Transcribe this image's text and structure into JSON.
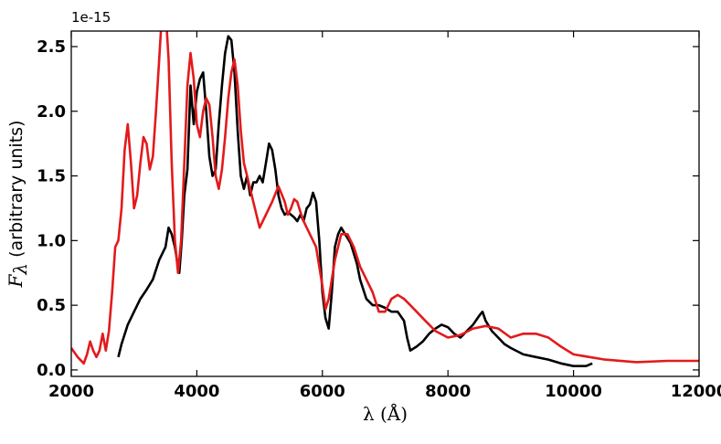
{
  "chart_data": {
    "type": "line",
    "title": "",
    "xlabel": "λ (Å)",
    "ylabel_symbol": "F",
    "ylabel_subscript": "λ",
    "ylabel_text": "(arbitrary units)",
    "y_offset_label": "1e-15",
    "xlim": [
      2000,
      12000
    ],
    "ylim": [
      -0.05,
      2.62
    ],
    "x_ticks": [
      2000,
      4000,
      6000,
      8000,
      10000,
      12000
    ],
    "x_tick_labels": [
      "2000",
      "4000",
      "6000",
      "8000",
      "10000",
      "12000"
    ],
    "y_ticks": [
      0.0,
      0.5,
      1.0,
      1.5,
      2.0,
      2.5
    ],
    "y_tick_labels": [
      "0.0",
      "0.5",
      "1.0",
      "1.5",
      "2.0",
      "2.5"
    ],
    "grid": false,
    "series": [
      {
        "color": "#000000",
        "x": [
          2750,
          2800,
          2900,
          3000,
          3100,
          3200,
          3300,
          3400,
          3500,
          3550,
          3600,
          3650,
          3700,
          3720,
          3760,
          3800,
          3850,
          3900,
          3950,
          4000,
          4050,
          4100,
          4150,
          4200,
          4250,
          4300,
          4350,
          4400,
          4450,
          4500,
          4550,
          4600,
          4650,
          4700,
          4750,
          4800,
          4850,
          4900,
          4950,
          5000,
          5050,
          5100,
          5150,
          5200,
          5250,
          5300,
          5350,
          5400,
          5450,
          5500,
          5550,
          5600,
          5650,
          5700,
          5750,
          5800,
          5850,
          5900,
          5950,
          6000,
          6050,
          6100,
          6150,
          6200,
          6250,
          6300,
          6350,
          6400,
          6450,
          6500,
          6550,
          6600,
          6700,
          6800,
          6900,
          7000,
          7100,
          7200,
          7300,
          7350,
          7400,
          7500,
          7600,
          7700,
          7800,
          7900,
          8000,
          8100,
          8200,
          8300,
          8400,
          8500,
          8550,
          8600,
          8700,
          8800,
          8900,
          9000,
          9200,
          9400,
          9600,
          9800,
          10000,
          10200,
          10300
        ],
        "y": [
          0.1,
          0.2,
          0.35,
          0.45,
          0.55,
          0.62,
          0.7,
          0.85,
          0.95,
          1.1,
          1.05,
          0.95,
          0.8,
          0.75,
          1.0,
          1.35,
          1.55,
          2.2,
          1.9,
          2.15,
          2.25,
          2.3,
          2.0,
          1.65,
          1.5,
          1.55,
          1.9,
          2.2,
          2.45,
          2.58,
          2.55,
          2.3,
          1.85,
          1.5,
          1.4,
          1.5,
          1.35,
          1.45,
          1.45,
          1.5,
          1.45,
          1.6,
          1.75,
          1.7,
          1.55,
          1.35,
          1.25,
          1.2,
          1.22,
          1.2,
          1.18,
          1.15,
          1.2,
          1.15,
          1.25,
          1.28,
          1.37,
          1.3,
          1.0,
          0.6,
          0.4,
          0.32,
          0.6,
          0.95,
          1.05,
          1.1,
          1.06,
          1.02,
          0.98,
          0.9,
          0.82,
          0.7,
          0.55,
          0.5,
          0.5,
          0.48,
          0.45,
          0.45,
          0.38,
          0.25,
          0.15,
          0.18,
          0.22,
          0.28,
          0.32,
          0.35,
          0.33,
          0.28,
          0.25,
          0.3,
          0.35,
          0.42,
          0.45,
          0.38,
          0.3,
          0.25,
          0.2,
          0.17,
          0.12,
          0.1,
          0.08,
          0.05,
          0.03,
          0.03,
          0.05
        ]
      },
      {
        "color": "#e31a1c",
        "x": [
          2000,
          2100,
          2200,
          2250,
          2300,
          2350,
          2400,
          2450,
          2500,
          2550,
          2600,
          2650,
          2700,
          2750,
          2800,
          2850,
          2900,
          2950,
          3000,
          3050,
          3100,
          3150,
          3200,
          3250,
          3300,
          3350,
          3400,
          3450,
          3500,
          3550,
          3600,
          3650,
          3700,
          3750,
          3800,
          3850,
          3900,
          3950,
          4000,
          4050,
          4100,
          4150,
          4200,
          4250,
          4300,
          4350,
          4400,
          4450,
          4500,
          4550,
          4600,
          4650,
          4700,
          4750,
          4800,
          4900,
          5000,
          5100,
          5200,
          5300,
          5400,
          5450,
          5500,
          5550,
          5600,
          5650,
          5700,
          5800,
          5900,
          6000,
          6050,
          6100,
          6200,
          6300,
          6400,
          6500,
          6600,
          6700,
          6800,
          6900,
          7000,
          7100,
          7200,
          7300,
          7400,
          7500,
          7600,
          7800,
          8000,
          8200,
          8400,
          8600,
          8800,
          9000,
          9200,
          9400,
          9600,
          9800,
          10000,
          10500,
          11000,
          11500,
          12000
        ],
        "y": [
          0.17,
          0.1,
          0.05,
          0.12,
          0.22,
          0.15,
          0.1,
          0.15,
          0.28,
          0.15,
          0.3,
          0.6,
          0.95,
          1.0,
          1.25,
          1.7,
          1.9,
          1.6,
          1.25,
          1.35,
          1.6,
          1.8,
          1.75,
          1.55,
          1.65,
          2.0,
          2.4,
          2.8,
          2.8,
          2.4,
          1.6,
          1.0,
          0.75,
          1.0,
          1.6,
          2.2,
          2.45,
          2.25,
          1.9,
          1.8,
          2.0,
          2.1,
          2.05,
          1.8,
          1.5,
          1.4,
          1.55,
          1.8,
          2.1,
          2.3,
          2.4,
          2.2,
          1.85,
          1.6,
          1.5,
          1.3,
          1.1,
          1.2,
          1.3,
          1.42,
          1.3,
          1.2,
          1.25,
          1.32,
          1.3,
          1.22,
          1.15,
          1.05,
          0.95,
          0.65,
          0.47,
          0.55,
          0.85,
          1.05,
          1.05,
          0.95,
          0.8,
          0.7,
          0.6,
          0.45,
          0.45,
          0.55,
          0.58,
          0.55,
          0.5,
          0.45,
          0.4,
          0.3,
          0.25,
          0.27,
          0.32,
          0.34,
          0.32,
          0.25,
          0.28,
          0.28,
          0.25,
          0.18,
          0.12,
          0.08,
          0.06,
          0.07,
          0.07
        ]
      }
    ]
  }
}
